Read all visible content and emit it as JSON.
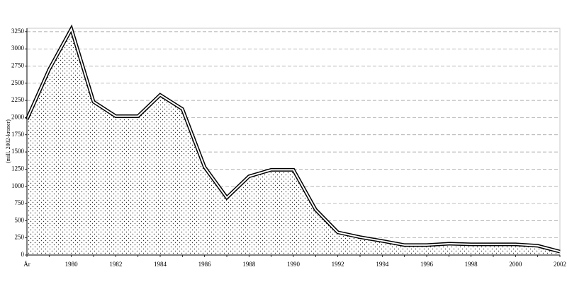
{
  "chart_data": {
    "type": "area",
    "y_label": "(mill. 2002-kroner)",
    "categories": [
      "År",
      null,
      "1980",
      null,
      "1982",
      null,
      "1984",
      null,
      "1986",
      null,
      "1988",
      null,
      "1990",
      null,
      "1992",
      null,
      "1994",
      null,
      "1996",
      null,
      "1998",
      null,
      "2000",
      null,
      "2002"
    ],
    "values": [
      1975,
      2700,
      3290,
      2230,
      2020,
      2020,
      2330,
      2125,
      1280,
      835,
      1145,
      1240,
      1240,
      660,
      330,
      260,
      205,
      145,
      145,
      165,
      155,
      155,
      155,
      135,
      50
    ],
    "color": "#000000",
    "ylim": [
      0,
      3300
    ],
    "yticks": [
      0,
      250,
      500,
      750,
      1000,
      1250,
      1500,
      1750,
      2000,
      2250,
      2500,
      2750,
      3000,
      3250
    ],
    "grid": true
  }
}
